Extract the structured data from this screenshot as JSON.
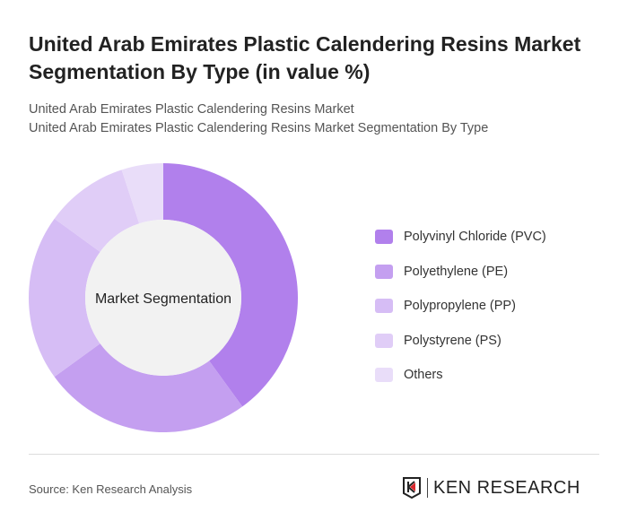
{
  "title": "United Arab Emirates Plastic Calendering Resins Market Segmentation By Type (in value %)",
  "subtitle1": "United Arab Emirates Plastic Calendering Resins Market",
  "subtitle2": "United Arab Emirates Plastic Calendering Resins Market Segmentation By Type",
  "chart_data": {
    "type": "pie",
    "variant": "donut",
    "center_label": "Market Segmentation",
    "categories": [
      "Polyvinyl Chloride (PVC)",
      "Polyethylene (PE)",
      "Polypropylene (PP)",
      "Polystyrene (PS)",
      "Others"
    ],
    "values": [
      40,
      25,
      20,
      10,
      5
    ],
    "colors": [
      "#b180ec",
      "#c49ff0",
      "#d6bdf5",
      "#e0cdf7",
      "#e9ddf9"
    ],
    "legend_position": "right"
  },
  "source": "Source: Ken Research Analysis",
  "logo_text": "KEN RESEARCH"
}
